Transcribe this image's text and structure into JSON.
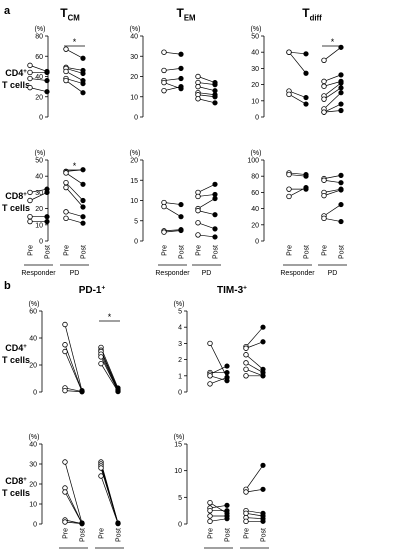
{
  "panels": {
    "a": {
      "letter": "a",
      "col_titles": [
        {
          "main": "T",
          "sub": "CM"
        },
        {
          "main": "T",
          "sub": "EM"
        },
        {
          "main": "T",
          "sub": "diff"
        }
      ],
      "row_labels": [
        {
          "line1": "CD4",
          "sup": "+",
          "line2": "T cells"
        },
        {
          "line1": "CD8",
          "sup": "+",
          "line2": "T cells"
        }
      ]
    },
    "b": {
      "letter": "b",
      "col_titles": [
        {
          "main": "PD-1",
          "sub": "+"
        },
        {
          "main": "TIM-3",
          "sub": "+"
        }
      ],
      "row_labels": [
        {
          "line1": "CD4",
          "sup": "+",
          "line2": "T cells"
        },
        {
          "line1": "CD8",
          "sup": "+",
          "line2": "T cells"
        }
      ]
    }
  },
  "x_ticks": [
    "Pre",
    "Post",
    "Pre",
    "Post"
  ],
  "groups": [
    "Responder",
    "PD"
  ],
  "unit": "(%)",
  "sig_marker": "*",
  "chart_data": [
    {
      "type": "scatter",
      "panel": "a",
      "row": "CD4+ T cells",
      "column": "TCM",
      "ylim": [
        0,
        80
      ],
      "yticks": [
        0,
        20,
        40,
        60,
        80
      ],
      "significant": "PD",
      "responder": [
        [
          51,
          45
        ],
        [
          44,
          44
        ],
        [
          38,
          36
        ],
        [
          29,
          25
        ]
      ],
      "pd": [
        [
          67,
          58
        ],
        [
          49,
          46
        ],
        [
          48,
          43
        ],
        [
          45,
          36
        ],
        [
          38,
          33
        ],
        [
          36,
          24
        ]
      ]
    },
    {
      "type": "scatter",
      "panel": "a",
      "row": "CD4+ T cells",
      "column": "TEM",
      "ylim": [
        0,
        40
      ],
      "yticks": [
        0,
        10,
        20,
        30,
        40
      ],
      "responder": [
        [
          32,
          31
        ],
        [
          23,
          24
        ],
        [
          18,
          19
        ],
        [
          17,
          14
        ],
        [
          13,
          15
        ]
      ],
      "pd": [
        [
          20,
          17
        ],
        [
          17,
          16
        ],
        [
          15,
          13
        ],
        [
          12,
          11
        ],
        [
          11,
          10
        ],
        [
          9,
          7
        ]
      ]
    },
    {
      "type": "scatter",
      "panel": "a",
      "row": "CD4+ T cells",
      "column": "Tdiff",
      "ylim": [
        0,
        50
      ],
      "yticks": [
        0,
        10,
        20,
        30,
        40,
        50
      ],
      "significant": "PD",
      "responder": [
        [
          40,
          39
        ],
        [
          40,
          27
        ],
        [
          16,
          12
        ],
        [
          14,
          8
        ]
      ],
      "pd": [
        [
          35,
          43
        ],
        [
          22,
          26
        ],
        [
          19,
          22
        ],
        [
          13,
          21
        ],
        [
          11,
          18
        ],
        [
          5,
          15
        ],
        [
          3,
          8
        ],
        [
          3,
          4
        ]
      ]
    },
    {
      "type": "scatter",
      "panel": "a",
      "row": "CD8+ T cells",
      "column": "TCM",
      "ylim": [
        0,
        50
      ],
      "yticks": [
        0,
        10,
        20,
        30,
        40,
        50
      ],
      "significant": "PD",
      "responder": [
        [
          30,
          32
        ],
        [
          25,
          30
        ],
        [
          15,
          15
        ],
        [
          12,
          12
        ]
      ],
      "pd": [
        [
          43,
          44
        ],
        [
          42,
          35
        ],
        [
          36,
          25
        ],
        [
          33,
          21
        ],
        [
          18,
          15
        ],
        [
          14,
          11
        ]
      ]
    },
    {
      "type": "scatter",
      "panel": "a",
      "row": "CD8+ T cells",
      "column": "TEM",
      "ylim": [
        0,
        20
      ],
      "yticks": [
        0,
        5,
        10,
        15,
        20
      ],
      "responder": [
        [
          9.5,
          9
        ],
        [
          8.5,
          6
        ],
        [
          2.5,
          2.8
        ],
        [
          2.2,
          2.6
        ]
      ],
      "pd": [
        [
          12,
          14
        ],
        [
          11,
          11.5
        ],
        [
          8,
          10.5
        ],
        [
          7.5,
          6.5
        ],
        [
          4.5,
          3
        ],
        [
          1.5,
          1
        ]
      ]
    },
    {
      "type": "scatter",
      "panel": "a",
      "row": "CD8+ T cells",
      "column": "Tdiff",
      "ylim": [
        0,
        100
      ],
      "yticks": [
        0,
        20,
        40,
        60,
        80,
        100
      ],
      "responder": [
        [
          84,
          82
        ],
        [
          82,
          80
        ],
        [
          64,
          64
        ],
        [
          55,
          66
        ]
      ],
      "pd": [
        [
          77,
          81
        ],
        [
          75,
          72
        ],
        [
          60,
          64
        ],
        [
          56,
          63
        ],
        [
          31,
          45
        ],
        [
          28,
          24
        ]
      ]
    },
    {
      "type": "scatter",
      "panel": "b",
      "row": "CD4+ T cells",
      "column": "PD-1+",
      "ylim": [
        0,
        60
      ],
      "yticks": [
        0,
        20,
        40,
        60
      ],
      "significant": "PD",
      "responder": [
        [
          50,
          1
        ],
        [
          35,
          0.5
        ],
        [
          30,
          0.5
        ],
        [
          3,
          0.3
        ],
        [
          1,
          0.2
        ]
      ],
      "pd": [
        [
          33,
          3
        ],
        [
          31,
          2
        ],
        [
          30,
          1.5
        ],
        [
          28,
          1
        ],
        [
          26,
          0.5
        ],
        [
          21,
          0.3
        ]
      ]
    },
    {
      "type": "scatter",
      "panel": "b",
      "row": "CD4+ T cells",
      "column": "TIM-3+",
      "ylim": [
        0,
        5
      ],
      "yticks": [
        0,
        1,
        2,
        3,
        4,
        5
      ],
      "responder": [
        [
          3.0,
          0.9
        ],
        [
          1.2,
          1.2
        ],
        [
          1.1,
          1.6
        ],
        [
          1.0,
          0.7
        ],
        [
          0.5,
          0.9
        ]
      ],
      "pd": [
        [
          2.8,
          4.0
        ],
        [
          2.7,
          3.1
        ],
        [
          2.3,
          1.4
        ],
        [
          1.8,
          1.2
        ],
        [
          1.4,
          1.0
        ],
        [
          1.0,
          1.0
        ]
      ]
    },
    {
      "type": "scatter",
      "panel": "b",
      "row": "CD8+ T cells",
      "column": "PD-1+",
      "ylim": [
        0,
        40
      ],
      "yticks": [
        0,
        10,
        20,
        30,
        40
      ],
      "responder": [
        [
          31,
          0.5
        ],
        [
          18,
          0.3
        ],
        [
          16,
          0.3
        ],
        [
          2,
          0.2
        ],
        [
          1,
          0.2
        ]
      ],
      "pd": [
        [
          31,
          0.5
        ],
        [
          30,
          0.4
        ],
        [
          29,
          0.3
        ],
        [
          28,
          0.3
        ],
        [
          24,
          0.2
        ]
      ]
    },
    {
      "type": "scatter",
      "panel": "b",
      "row": "CD8+ T cells",
      "column": "TIM-3+",
      "ylim": [
        0,
        15
      ],
      "yticks": [
        0,
        5,
        10,
        15
      ],
      "responder": [
        [
          4.0,
          2.0
        ],
        [
          3.0,
          3.5
        ],
        [
          2.5,
          2.5
        ],
        [
          1.5,
          1.5
        ],
        [
          0.5,
          1.0
        ]
      ],
      "pd": [
        [
          6.5,
          11.0
        ],
        [
          6.0,
          6.5
        ],
        [
          2.5,
          2.0
        ],
        [
          2.0,
          1.5
        ],
        [
          1.2,
          1.0
        ],
        [
          0.5,
          0.5
        ]
      ]
    }
  ]
}
